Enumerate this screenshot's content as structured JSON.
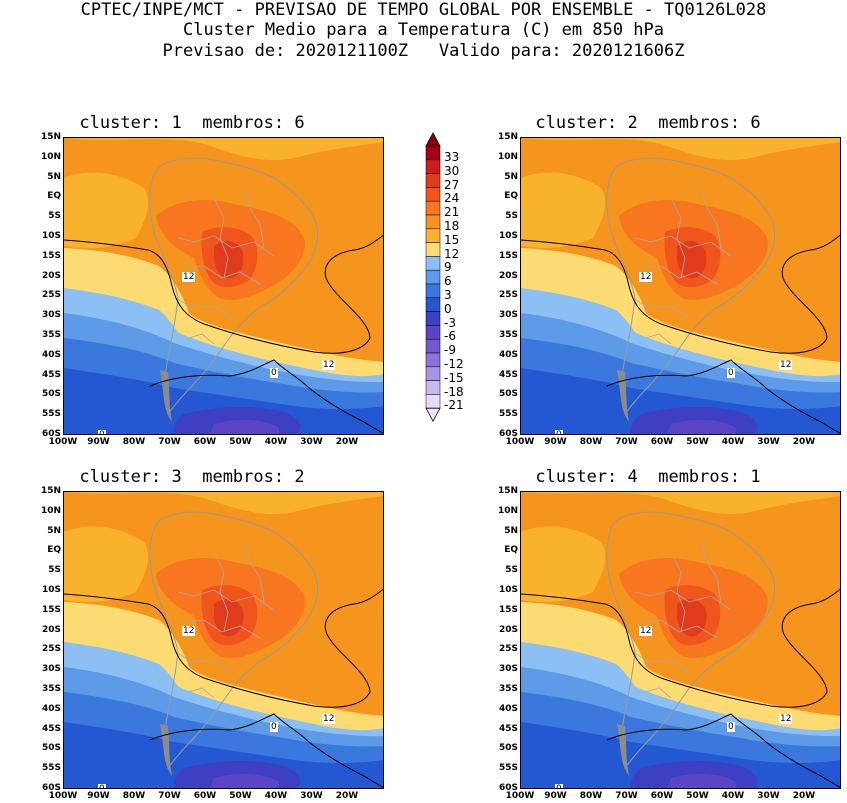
{
  "header": {
    "line1": "CPTEC/INPE/MCT - PREVISAO DE TEMPO GLOBAL POR ENSEMBLE - TQ0126L028",
    "line2": "Cluster Medio para a Temperatura (C) em 850 hPa",
    "line3": "Previsao de: 2020121100Z   Valido para: 2020121606Z"
  },
  "panels": [
    {
      "title": "cluster: 1  membros: 6"
    },
    {
      "title": "cluster: 2  membros: 6"
    },
    {
      "title": "cluster: 3  membros: 2"
    },
    {
      "title": "cluster: 4  membros: 1"
    }
  ],
  "lat_labels": [
    "15N",
    "10N",
    "5N",
    "EQ",
    "5S",
    "10S",
    "15S",
    "20S",
    "25S",
    "30S",
    "35S",
    "40S",
    "45S",
    "50S",
    "55S",
    "60S"
  ],
  "lon_labels": [
    "100W",
    "90W",
    "80W",
    "70W",
    "60W",
    "50W",
    "40W",
    "30W",
    "20W"
  ],
  "contour_labels": {
    "twelve": "12",
    "zero": "0"
  },
  "colorbar": {
    "labels": [
      "33",
      "30",
      "27",
      "24",
      "21",
      "18",
      "15",
      "12",
      "9",
      "6",
      "3",
      "0",
      "-3",
      "-6",
      "-9",
      "-12",
      "-15",
      "-18",
      "-21"
    ],
    "colors": [
      "#a50016",
      "#c81e1e",
      "#e03b1d",
      "#f0551b",
      "#f7761f",
      "#f5951d",
      "#f9b22c",
      "#fddb73",
      "#8cc0f4",
      "#5d9be8",
      "#3a78de",
      "#2458d2",
      "#3f3fc4",
      "#5b44c6",
      "#7558cc",
      "#8f74d6",
      "#aa93e0",
      "#c8b8ec",
      "#e6dcf7"
    ],
    "under_color": "#eee7fa",
    "over_color": "#8a0010"
  }
}
